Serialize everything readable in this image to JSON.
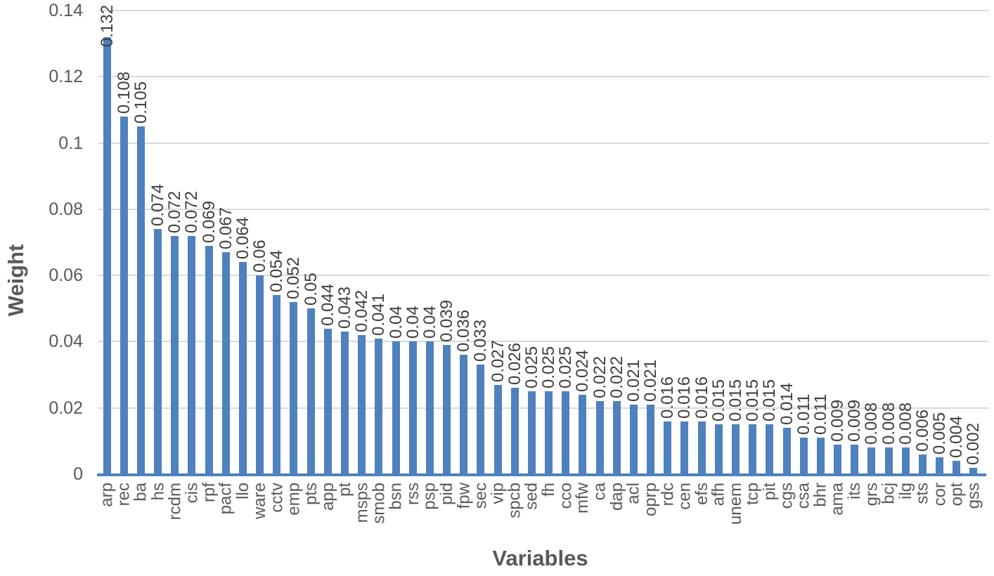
{
  "chart_data": {
    "type": "bar",
    "title": "",
    "xlabel": "Variables",
    "ylabel": "Weight",
    "ylim": [
      0,
      0.14
    ],
    "ytick_step": 0.02,
    "grid": true,
    "legend_position": "none",
    "colors": {
      "bar": "#4e81bd",
      "axis_line": "#4e81bd",
      "gridline": "#d9d9d9",
      "tick_text": "#595959",
      "value_label_text": "#3f3f3f",
      "axis_title_text": "#595959"
    },
    "yticks": [
      {
        "label": "0.14",
        "value": 0.14
      },
      {
        "label": "0.12",
        "value": 0.12
      },
      {
        "label": "0.1",
        "value": 0.1
      },
      {
        "label": "0.08",
        "value": 0.08
      },
      {
        "label": "0.06",
        "value": 0.06
      },
      {
        "label": "0.04",
        "value": 0.04
      },
      {
        "label": "0.02",
        "value": 0.02
      },
      {
        "label": "0",
        "value": 0
      }
    ],
    "categories": [
      "arp",
      "rec",
      "ba",
      "hs",
      "rcdm",
      "cis",
      "rpf",
      "pacf",
      "llo",
      "ware",
      "cctv",
      "emp",
      "pts",
      "app",
      "pt",
      "msps",
      "smob",
      "bsn",
      "rss",
      "psp",
      "pid",
      "fpw",
      "sec",
      "vip",
      "spcb",
      "sed",
      "fh",
      "cco",
      "mfw",
      "ca",
      "dap",
      "acl",
      "oprp",
      "rdc",
      "cen",
      "efs",
      "afh",
      "unem",
      "tcp",
      "pit",
      "cgs",
      "csa",
      "bhr",
      "ama",
      "its",
      "grs",
      "bcj",
      "ilg",
      "sts",
      "cor",
      "opt",
      "gss"
    ],
    "values": [
      0.132,
      0.108,
      0.105,
      0.074,
      0.072,
      0.072,
      0.069,
      0.067,
      0.064,
      0.06,
      0.054,
      0.052,
      0.05,
      0.044,
      0.043,
      0.042,
      0.041,
      0.04,
      0.04,
      0.04,
      0.039,
      0.036,
      0.033,
      0.027,
      0.026,
      0.025,
      0.025,
      0.025,
      0.024,
      0.022,
      0.022,
      0.021,
      0.021,
      0.016,
      0.016,
      0.016,
      0.015,
      0.015,
      0.015,
      0.015,
      0.014,
      0.011,
      0.011,
      0.009,
      0.009,
      0.008,
      0.008,
      0.008,
      0.006,
      0.005,
      0.004,
      0.002
    ],
    "value_labels": [
      "0.132",
      "0.108",
      "0.105",
      "0.074",
      "0.072",
      "0.072",
      "0.069",
      "0.067",
      "0.064",
      "0.06",
      "0.054",
      "0.052",
      "0.05",
      "0.044",
      "0.043",
      "0.042",
      "0.041",
      "0.04",
      "0.04",
      "0.04",
      "0.039",
      "0.036",
      "0.033",
      "0.027",
      "0.026",
      "0.025",
      "0.025",
      "0.025",
      "0.024",
      "0.022",
      "0.022",
      "0.021",
      "0.021",
      "0.016",
      "0.016",
      "0.016",
      "0.015",
      "0.015",
      "0.015",
      "0.015",
      "0.014",
      "0.011",
      "0.011",
      "0.009",
      "0.009",
      "0.008",
      "0.008",
      "0.008",
      "0.006",
      "0.005",
      "0.004",
      "0.002"
    ]
  }
}
